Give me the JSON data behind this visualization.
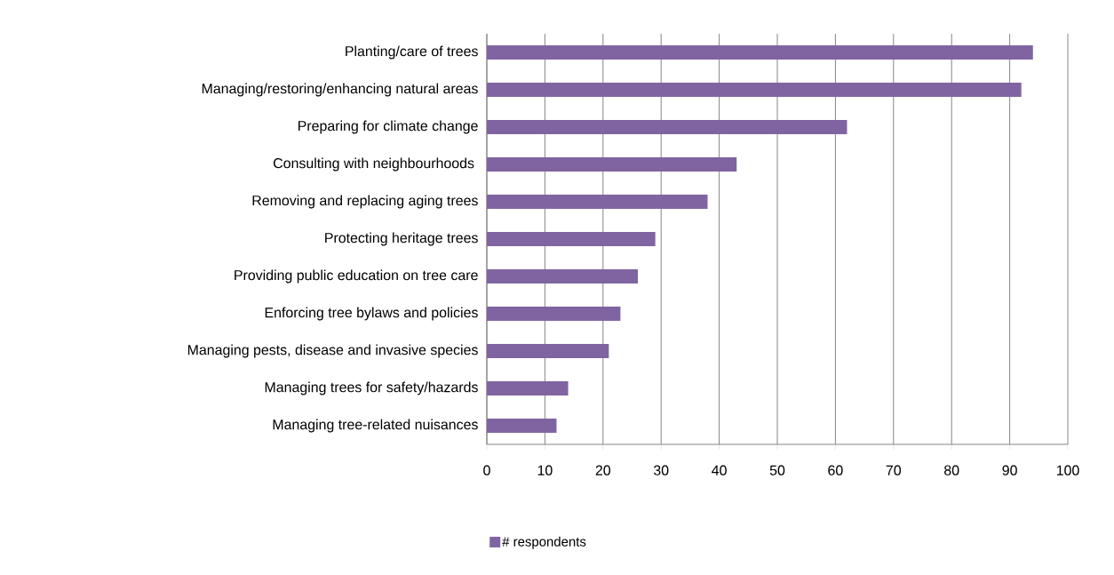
{
  "chart_data": {
    "type": "bar",
    "orientation": "horizontal",
    "categories": [
      "Planting/care of trees",
      "Managing/restoring/enhancing natural areas",
      "Preparing for climate change",
      "Consulting with neighbourhoods ",
      "Removing and replacing aging trees",
      "Protecting heritage trees",
      "Providing public education on tree care",
      "Enforcing tree bylaws and policies",
      "Managing pests, disease and invasive species",
      "Managing trees for safety/hazards",
      "Managing tree-related nuisances"
    ],
    "series": [
      {
        "name": "# respondents",
        "color": "#8064a2",
        "values": [
          94,
          92,
          62,
          43,
          38,
          29,
          26,
          23,
          21,
          14,
          12
        ]
      }
    ],
    "xlim": [
      0,
      100
    ],
    "xticks": [
      0,
      10,
      20,
      30,
      40,
      50,
      60,
      70,
      80,
      90,
      100
    ],
    "grid": "x",
    "legend": "bottom"
  }
}
